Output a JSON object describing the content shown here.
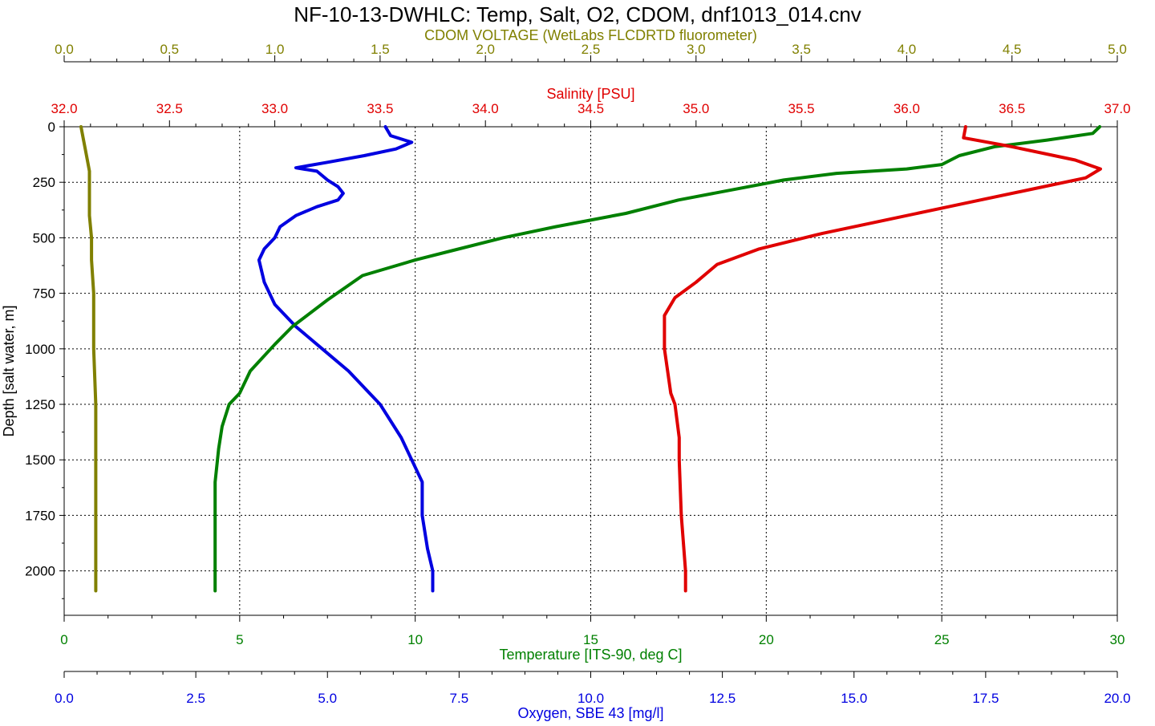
{
  "chart_data": {
    "type": "line",
    "title": "NF-10-13-DWHLC: Temp, Salt, O2, CDOM, dnf1013_014.cnv",
    "grid": true,
    "y_axis": {
      "label": "Depth [salt water, m]",
      "range": [
        0,
        2200
      ],
      "ticks": [
        0,
        250,
        500,
        750,
        1000,
        1250,
        1500,
        1750,
        2000
      ],
      "tick_labels": [
        "0",
        "250",
        "500",
        "750",
        "1000",
        "1250",
        "1500",
        "1750",
        "2000"
      ],
      "inverted": true
    },
    "x_axes": [
      {
        "id": "cdom",
        "label": "CDOM VOLTAGE (WetLabs FLCDRTD fluorometer)",
        "position": "top-outer",
        "color": "#808000",
        "range": [
          0,
          5
        ],
        "ticks": [
          0,
          0.5,
          1,
          1.5,
          2,
          2.5,
          3,
          3.5,
          4,
          4.5,
          5
        ],
        "tick_labels": [
          "0.0",
          "0.5",
          "1.0",
          "1.5",
          "2.0",
          "2.5",
          "3.0",
          "3.5",
          "4.0",
          "4.5",
          "5.0"
        ]
      },
      {
        "id": "salinity",
        "label": "Salinity [PSU]",
        "position": "top-inner",
        "color": "#e00000",
        "range": [
          32,
          37
        ],
        "ticks": [
          32,
          32.5,
          33,
          33.5,
          34,
          34.5,
          35,
          35.5,
          36,
          36.5,
          37
        ],
        "tick_labels": [
          "32.0",
          "32.5",
          "33.0",
          "33.5",
          "34.0",
          "34.5",
          "35.0",
          "35.5",
          "36.0",
          "36.5",
          "37.0"
        ]
      },
      {
        "id": "temperature",
        "label": "Temperature [ITS-90, deg C]",
        "position": "bottom-inner",
        "color": "#008000",
        "range": [
          0,
          30
        ],
        "ticks": [
          0,
          5,
          10,
          15,
          20,
          25,
          30
        ],
        "tick_labels": [
          "0",
          "5",
          "10",
          "15",
          "20",
          "25",
          "30"
        ]
      },
      {
        "id": "oxygen",
        "label": "Oxygen, SBE 43 [mg/l]",
        "position": "bottom-outer",
        "color": "#0000e0",
        "range": [
          0,
          20
        ],
        "ticks": [
          0,
          2.5,
          5,
          7.5,
          10,
          12.5,
          15,
          17.5,
          20
        ],
        "tick_labels": [
          "0.0",
          "2.5",
          "5.0",
          "7.5",
          "10.0",
          "12.5",
          "15.0",
          "17.5",
          "20.0"
        ]
      }
    ],
    "series": [
      {
        "axis": "cdom",
        "color": "#808000",
        "points": [
          [
            0.08,
            0
          ],
          [
            0.09,
            50
          ],
          [
            0.1,
            100
          ],
          [
            0.11,
            150
          ],
          [
            0.12,
            200
          ],
          [
            0.12,
            300
          ],
          [
            0.12,
            400
          ],
          [
            0.13,
            500
          ],
          [
            0.13,
            600
          ],
          [
            0.14,
            750
          ],
          [
            0.14,
            900
          ],
          [
            0.14,
            1000
          ],
          [
            0.15,
            1250
          ],
          [
            0.15,
            1500
          ],
          [
            0.15,
            1750
          ],
          [
            0.15,
            2000
          ],
          [
            0.15,
            2090
          ]
        ]
      },
      {
        "axis": "oxygen",
        "color": "#0000e0",
        "points": [
          [
            6.1,
            0
          ],
          [
            6.2,
            40
          ],
          [
            6.6,
            70
          ],
          [
            6.3,
            100
          ],
          [
            5.7,
            130
          ],
          [
            5.0,
            160
          ],
          [
            4.4,
            185
          ],
          [
            4.8,
            200
          ],
          [
            5.0,
            240
          ],
          [
            5.2,
            270
          ],
          [
            5.3,
            300
          ],
          [
            5.2,
            330
          ],
          [
            4.8,
            360
          ],
          [
            4.4,
            400
          ],
          [
            4.1,
            450
          ],
          [
            4.0,
            500
          ],
          [
            3.8,
            550
          ],
          [
            3.7,
            600
          ],
          [
            3.8,
            700
          ],
          [
            4.0,
            800
          ],
          [
            4.4,
            900
          ],
          [
            4.9,
            1000
          ],
          [
            5.4,
            1100
          ],
          [
            5.8,
            1200
          ],
          [
            6.0,
            1250
          ],
          [
            6.4,
            1400
          ],
          [
            6.6,
            1500
          ],
          [
            6.8,
            1600
          ],
          [
            6.8,
            1750
          ],
          [
            6.9,
            1900
          ],
          [
            7.0,
            2000
          ],
          [
            7.0,
            2090
          ]
        ]
      },
      {
        "axis": "temperature",
        "color": "#008000",
        "points": [
          [
            29.5,
            0
          ],
          [
            29.3,
            30
          ],
          [
            28.0,
            60
          ],
          [
            26.5,
            90
          ],
          [
            25.5,
            130
          ],
          [
            25.0,
            170
          ],
          [
            24.0,
            190
          ],
          [
            22.0,
            210
          ],
          [
            20.5,
            240
          ],
          [
            19.5,
            270
          ],
          [
            17.5,
            330
          ],
          [
            16.0,
            390
          ],
          [
            14.0,
            450
          ],
          [
            12.5,
            500
          ],
          [
            11.0,
            560
          ],
          [
            10.0,
            600
          ],
          [
            8.5,
            670
          ],
          [
            7.5,
            780
          ],
          [
            6.5,
            900
          ],
          [
            6.0,
            980
          ],
          [
            5.3,
            1100
          ],
          [
            5.0,
            1200
          ],
          [
            4.7,
            1250
          ],
          [
            4.5,
            1350
          ],
          [
            4.4,
            1450
          ],
          [
            4.3,
            1600
          ],
          [
            4.3,
            1800
          ],
          [
            4.3,
            2000
          ],
          [
            4.3,
            2090
          ]
        ]
      },
      {
        "axis": "salinity",
        "color": "#e00000",
        "points": [
          [
            36.28,
            0
          ],
          [
            36.27,
            50
          ],
          [
            36.5,
            90
          ],
          [
            36.8,
            150
          ],
          [
            36.92,
            190
          ],
          [
            36.85,
            230
          ],
          [
            36.6,
            280
          ],
          [
            36.3,
            340
          ],
          [
            35.9,
            420
          ],
          [
            35.6,
            480
          ],
          [
            35.3,
            550
          ],
          [
            35.1,
            620
          ],
          [
            35.0,
            700
          ],
          [
            34.9,
            770
          ],
          [
            34.85,
            850
          ],
          [
            34.85,
            1000
          ],
          [
            34.88,
            1200
          ],
          [
            34.9,
            1250
          ],
          [
            34.92,
            1400
          ],
          [
            34.92,
            1500
          ],
          [
            34.93,
            1750
          ],
          [
            34.95,
            2000
          ],
          [
            34.95,
            2090
          ]
        ]
      }
    ]
  }
}
